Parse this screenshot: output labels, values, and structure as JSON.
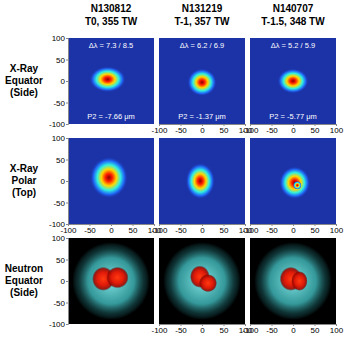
{
  "columns": [
    {
      "shot": "N130812",
      "label": "T0, 355 TW"
    },
    {
      "shot": "N131219",
      "label": "T-1, 357 TW"
    },
    {
      "shot": "N140707",
      "label": "T-1.5, 348 TW"
    }
  ],
  "rows": [
    "X-Ray Equator (Side)",
    "X-Ray Polar (Top)",
    "Neutron Equator (Side)"
  ],
  "chart_data": [
    {
      "type": "image",
      "color": "jet",
      "xlim": [
        -100,
        100
      ],
      "ylim": [
        -100,
        100
      ],
      "xticks": [
        -100,
        -50,
        0,
        50,
        100
      ],
      "yticks": [
        -100,
        -50,
        0,
        50,
        100
      ],
      "tick_labels": "y",
      "annotations": [
        "Δλ = 7.3 / 8.5",
        "P2 = -7.66 μm"
      ],
      "blobs": [
        {
          "cx": -8,
          "cy": 4,
          "rx": 42,
          "ry": 30
        }
      ]
    },
    {
      "type": "image",
      "color": "jet",
      "xlim": [
        -100,
        100
      ],
      "ylim": [
        -100,
        100
      ],
      "xticks": [
        -100,
        -50,
        0,
        50,
        100
      ],
      "yticks": [
        -100,
        -50,
        0,
        50,
        100
      ],
      "tick_labels": "x",
      "annotations": [
        "Δλ = 6.2 / 6.9",
        "P2 = -1.37 μm"
      ],
      "blobs": [
        {
          "cx": 0,
          "cy": -3,
          "rx": 34,
          "ry": 32
        }
      ]
    },
    {
      "type": "image",
      "color": "jet",
      "xlim": [
        -100,
        100
      ],
      "ylim": [
        -100,
        100
      ],
      "xticks": [
        -100,
        -50,
        0,
        50,
        100
      ],
      "yticks": [
        -100,
        -50,
        0,
        50,
        100
      ],
      "tick_labels": "x",
      "annotations": [
        "Δλ = 5.2 / 5.9",
        "P2 = -5.77 μm"
      ],
      "blobs": [
        {
          "cx": 0,
          "cy": 0,
          "rx": 36,
          "ry": 29
        }
      ]
    },
    {
      "type": "image",
      "color": "jet",
      "xlim": [
        -100,
        100
      ],
      "ylim": [
        -100,
        100
      ],
      "xticks": [
        -100,
        -50,
        0,
        50,
        100
      ],
      "yticks": [
        -100,
        -50,
        0,
        50,
        100
      ],
      "tick_labels": true,
      "blobs": [
        {
          "cx": -5,
          "cy": 8,
          "rx": 44,
          "ry": 48
        }
      ]
    },
    {
      "type": "image",
      "color": "jet",
      "xlim": [
        -100,
        100
      ],
      "ylim": [
        -100,
        100
      ],
      "xticks": [
        -100,
        -50,
        0,
        50,
        100
      ],
      "yticks": [
        -100,
        -50,
        0,
        50,
        100
      ],
      "tick_labels": "x",
      "blobs": [
        {
          "cx": -4,
          "cy": 0,
          "rx": 34,
          "ry": 42
        }
      ]
    },
    {
      "type": "image",
      "color": "jet",
      "xlim": [
        -100,
        100
      ],
      "ylim": [
        -100,
        100
      ],
      "xticks": [
        -100,
        -50,
        0,
        50,
        100
      ],
      "yticks": [
        -100,
        -50,
        0,
        50,
        100
      ],
      "tick_labels": "x",
      "blobs": [
        {
          "cx": 4,
          "cy": -4,
          "rx": 36,
          "ry": 38
        },
        {
          "cx": 10,
          "cy": -10,
          "rx": 10,
          "ry": 10
        }
      ]
    },
    {
      "type": "image",
      "color": "red",
      "xlim": [
        -100,
        100
      ],
      "ylim": [
        -100,
        100
      ],
      "xticks": [
        -100,
        -50,
        0,
        50,
        100
      ],
      "yticks": [
        -100,
        -50,
        0,
        50,
        100
      ],
      "tick_labels": "y",
      "blobs": [
        {
          "cx": -18,
          "cy": 5,
          "rx": 26,
          "ry": 28
        },
        {
          "cx": 15,
          "cy": 8,
          "rx": 26,
          "ry": 25
        }
      ]
    },
    {
      "type": "image",
      "color": "red",
      "xlim": [
        -100,
        100
      ],
      "ylim": [
        -100,
        100
      ],
      "xticks": [
        -100,
        -50,
        0,
        50,
        100
      ],
      "yticks": [
        -100,
        -50,
        0,
        50,
        100
      ],
      "tick_labels": "x",
      "blobs": [
        {
          "cx": -5,
          "cy": 10,
          "rx": 23,
          "ry": 26
        },
        {
          "cx": 14,
          "cy": -5,
          "rx": 21,
          "ry": 21
        }
      ]
    },
    {
      "type": "image",
      "color": "red",
      "xlim": [
        -100,
        100
      ],
      "ylim": [
        -100,
        100
      ],
      "xticks": [
        -100,
        -50,
        0,
        50,
        100
      ],
      "yticks": [
        -100,
        -50,
        0,
        50,
        100
      ],
      "tick_labels": "x",
      "blobs": [
        {
          "cx": -5,
          "cy": 5,
          "rx": 26,
          "ry": 28
        },
        {
          "cx": 15,
          "cy": 0,
          "rx": 19,
          "ry": 23
        }
      ]
    }
  ]
}
